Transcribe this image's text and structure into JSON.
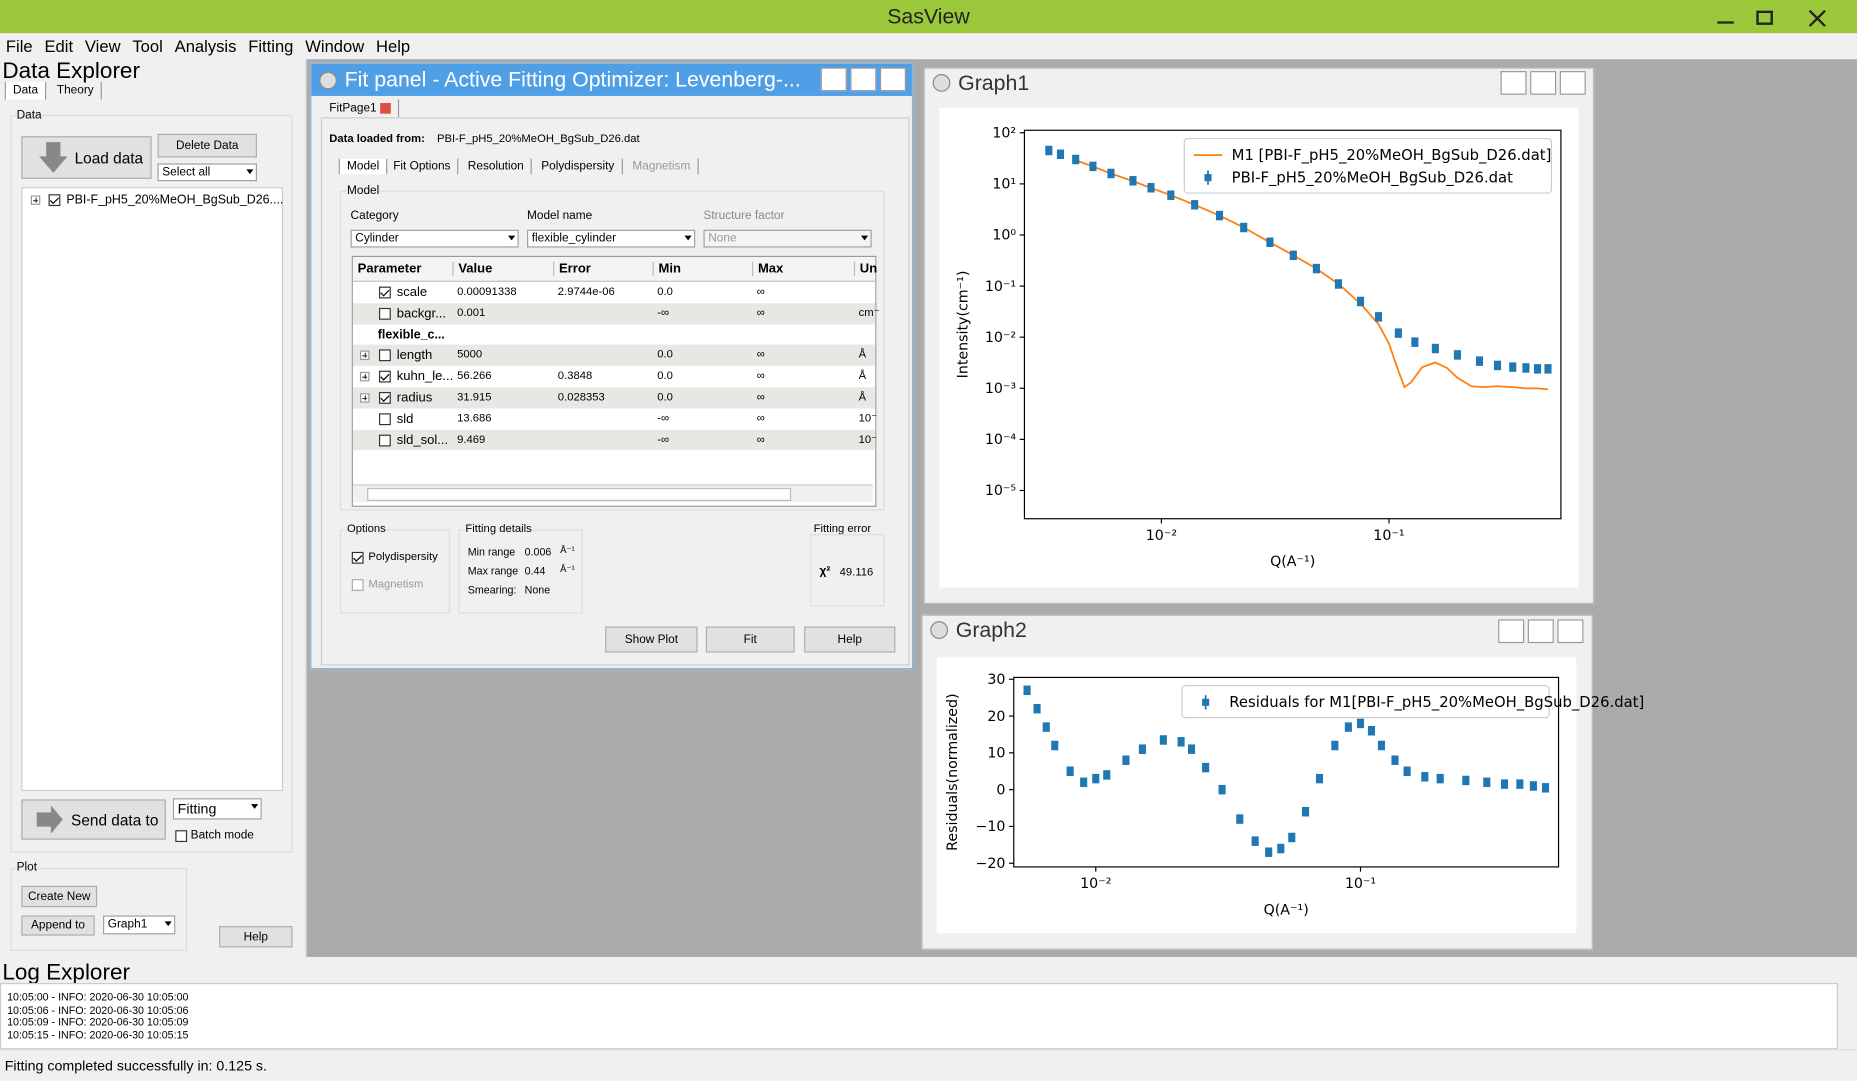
{
  "window": {
    "title": "SasView"
  },
  "menu": [
    "File",
    "Edit",
    "View",
    "Tool",
    "Analysis",
    "Fitting",
    "Window",
    "Help"
  ],
  "data_explorer": {
    "title": "Data Explorer",
    "tabs": [
      "Data",
      "Theory"
    ],
    "data_group": "Data",
    "load_data": "Load data",
    "delete_data": "Delete Data",
    "select": "Select all",
    "file": {
      "name": "PBI-F_pH5_20%MeOH_BgSub_D26....",
      "checked": true
    },
    "send_data": "Send data to",
    "send_target": "Fitting",
    "batch_mode": {
      "label": "Batch mode",
      "checked": false
    },
    "plot_group": "Plot",
    "create_new": "Create New",
    "append_to": "Append to",
    "graph_select": "Graph1",
    "help": "Help"
  },
  "fit_panel": {
    "title": "Fit panel - Active Fitting Optimizer: Levenberg-...",
    "page_tab": "FitPage1",
    "data_loaded_label": "Data loaded from:",
    "data_file": "PBI-F_pH5_20%MeOH_BgSub_D26.dat",
    "tabs": [
      "Model",
      "Fit Options",
      "Resolution",
      "Polydispersity",
      "Magnetism"
    ],
    "model_group": "Model",
    "category_label": "Category",
    "category": "Cylinder",
    "model_name_label": "Model name",
    "model_name": "flexible_cylinder",
    "structure_factor_label": "Structure factor",
    "structure_factor": "None",
    "columns": [
      "Parameter",
      "Value",
      "Error",
      "Min",
      "Max",
      "Un"
    ],
    "rows": [
      {
        "name": "scale",
        "checked": true,
        "value": "0.00091338",
        "error": "2.9744e-06",
        "min": "0.0",
        "max": "∞"
      },
      {
        "name": "backgr...",
        "checked": false,
        "value": "0.001",
        "min": "-∞",
        "max": "∞",
        "unit": "cm⁻"
      },
      {
        "name": "flexible_c...",
        "group": true
      },
      {
        "name": "length",
        "expandable": true,
        "checked": false,
        "value": "5000",
        "min": "0.0",
        "max": "∞",
        "unit": "Å"
      },
      {
        "name": "kuhn_le...",
        "expandable": true,
        "checked": true,
        "value": "56.266",
        "error": "0.3848",
        "min": "0.0",
        "max": "∞",
        "unit": "Å"
      },
      {
        "name": "radius",
        "expandable": true,
        "checked": true,
        "value": "31.915",
        "error": "0.028353",
        "min": "0.0",
        "max": "∞",
        "unit": "Å"
      },
      {
        "name": "sld",
        "checked": false,
        "value": "13.686",
        "min": "-∞",
        "max": "∞",
        "unit": "10⁻"
      },
      {
        "name": "sld_sol...",
        "checked": false,
        "value": "9.469",
        "min": "-∞",
        "max": "∞",
        "unit": "10⁻"
      }
    ],
    "options_group": "Options",
    "polydispersity": {
      "label": "Polydispersity",
      "checked": true
    },
    "magnetism": {
      "label": "Magnetism",
      "checked": false
    },
    "fitting_details": "Fitting details",
    "min_range_label": "Min range",
    "min_range": "0.006",
    "min_range_unit": "Å⁻¹",
    "max_range_label": "Max range",
    "max_range": "0.44",
    "max_range_unit": "Å⁻¹",
    "smearing_label": "Smearing:",
    "smearing": "None",
    "fitting_error": "Fitting error",
    "chi2_label": "χ²",
    "chi2": "49.116",
    "buttons": [
      "Show Plot",
      "Fit",
      "Help"
    ]
  },
  "graph1": {
    "title": "Graph1",
    "chart": {
      "type": "line",
      "xlabel": "Q(A⁻¹)",
      "ylabel": "Intensity(cm⁻¹)",
      "log_x": true,
      "log_y": true,
      "legend": "upper right",
      "xlim": [
        0.0025,
        0.57
      ],
      "ylim": [
        2.8e-06,
        112
      ],
      "xticks": [
        {
          "value": 0.01,
          "label": "10⁻²"
        },
        {
          "value": 0.1,
          "label": "10⁻¹"
        }
      ],
      "yticks": [
        {
          "value": 100,
          "label": "10²"
        },
        {
          "value": 10,
          "label": "10¹"
        },
        {
          "value": 1,
          "label": "10⁰"
        },
        {
          "value": 0.1,
          "label": "10⁻¹"
        },
        {
          "value": 0.01,
          "label": "10⁻²"
        },
        {
          "value": 0.001,
          "label": "10⁻³"
        },
        {
          "value": 0.0001,
          "label": "10⁻⁴"
        },
        {
          "value": 1e-05,
          "label": "10⁻⁵"
        }
      ],
      "series": [
        {
          "name": "M1 [PBI-F_pH5_20%MeOH_BgSub_D26.dat]",
          "color": "#ff7f0e",
          "style": "line",
          "x": [
            0.0042,
            0.005,
            0.006,
            0.0075,
            0.009,
            0.011,
            0.014,
            0.018,
            0.023,
            0.03,
            0.038,
            0.048,
            0.06,
            0.075,
            0.09,
            0.1,
            0.11,
            0.117,
            0.125,
            0.14,
            0.16,
            0.18,
            0.2,
            0.23,
            0.26,
            0.3,
            0.35,
            0.4,
            0.45,
            0.5
          ],
          "values": [
            29,
            22,
            16,
            11.3,
            8.3,
            6.0,
            3.9,
            2.4,
            1.4,
            0.72,
            0.4,
            0.22,
            0.11,
            0.045,
            0.018,
            0.0075,
            0.0022,
            0.00105,
            0.0013,
            0.0026,
            0.0032,
            0.0025,
            0.0016,
            0.0011,
            0.00105,
            0.0011,
            0.00105,
            0.001,
            0.001,
            0.00095
          ]
        },
        {
          "name": "PBI-F_pH5_20%MeOH_BgSub_D26.dat",
          "color": "#1f77b4",
          "style": "errorbar",
          "x": [
            0.0032,
            0.0036,
            0.0042,
            0.005,
            0.006,
            0.0075,
            0.009,
            0.011,
            0.014,
            0.018,
            0.023,
            0.03,
            0.038,
            0.048,
            0.06,
            0.075,
            0.09,
            0.11,
            0.13,
            0.16,
            0.2,
            0.25,
            0.3,
            0.35,
            0.4,
            0.45,
            0.5
          ],
          "values": [
            45,
            38,
            30,
            22,
            16,
            11.5,
            8.4,
            6.0,
            3.9,
            2.4,
            1.4,
            0.72,
            0.4,
            0.22,
            0.11,
            0.05,
            0.025,
            0.012,
            0.008,
            0.006,
            0.0045,
            0.0034,
            0.0028,
            0.0026,
            0.0025,
            0.0024,
            0.0024
          ]
        }
      ]
    }
  },
  "graph2": {
    "title": "Graph2",
    "chart": {
      "type": "scatter",
      "xlabel": "Q(A⁻¹)",
      "ylabel": "Residuals(normalized)",
      "log_x": true,
      "log_y": false,
      "legend": "upper right",
      "xlim": [
        0.0049,
        0.56
      ],
      "ylim": [
        -21,
        30.5
      ],
      "xticks": [
        {
          "value": 0.01,
          "label": "10⁻²"
        },
        {
          "value": 0.1,
          "label": "10⁻¹"
        }
      ],
      "yticks": [
        30,
        20,
        10,
        0,
        {
          "value": -10,
          "label": "−10"
        },
        {
          "value": -20,
          "label": "−20"
        }
      ],
      "series": [
        {
          "name": "Residuals for M1[PBI-F_pH5_20%MeOH_BgSub_D26.dat]",
          "color": "#1f77b4",
          "style": "errorbar",
          "x": [
            0.0055,
            0.006,
            0.0065,
            0.007,
            0.008,
            0.009,
            0.01,
            0.011,
            0.013,
            0.015,
            0.018,
            0.021,
            0.023,
            0.026,
            0.03,
            0.035,
            0.04,
            0.045,
            0.05,
            0.055,
            0.062,
            0.07,
            0.08,
            0.09,
            0.1,
            0.11,
            0.12,
            0.135,
            0.15,
            0.175,
            0.2,
            0.25,
            0.3,
            0.35,
            0.4,
            0.45,
            0.5
          ],
          "values": [
            27,
            22,
            17,
            12,
            5,
            2,
            3,
            4,
            8,
            11,
            13.5,
            13,
            11,
            6,
            0,
            -8,
            -14,
            -17,
            -16,
            -13,
            -6,
            3,
            12,
            17,
            18,
            16,
            12,
            8,
            5,
            3.5,
            3,
            2.5,
            2,
            1.5,
            1.5,
            1,
            0.5
          ]
        }
      ]
    }
  },
  "log_explorer": {
    "title": "Log Explorer",
    "lines": [
      "10:05:00 - INFO: 2020-06-30 10:05:00",
      "10:05:06 - INFO: 2020-06-30 10:05:06",
      "10:05:09 - INFO: 2020-06-30 10:05:09",
      "10:05:15 - INFO: 2020-06-30 10:05:15"
    ]
  },
  "status": "Fitting completed successfully in: 0.125 s."
}
